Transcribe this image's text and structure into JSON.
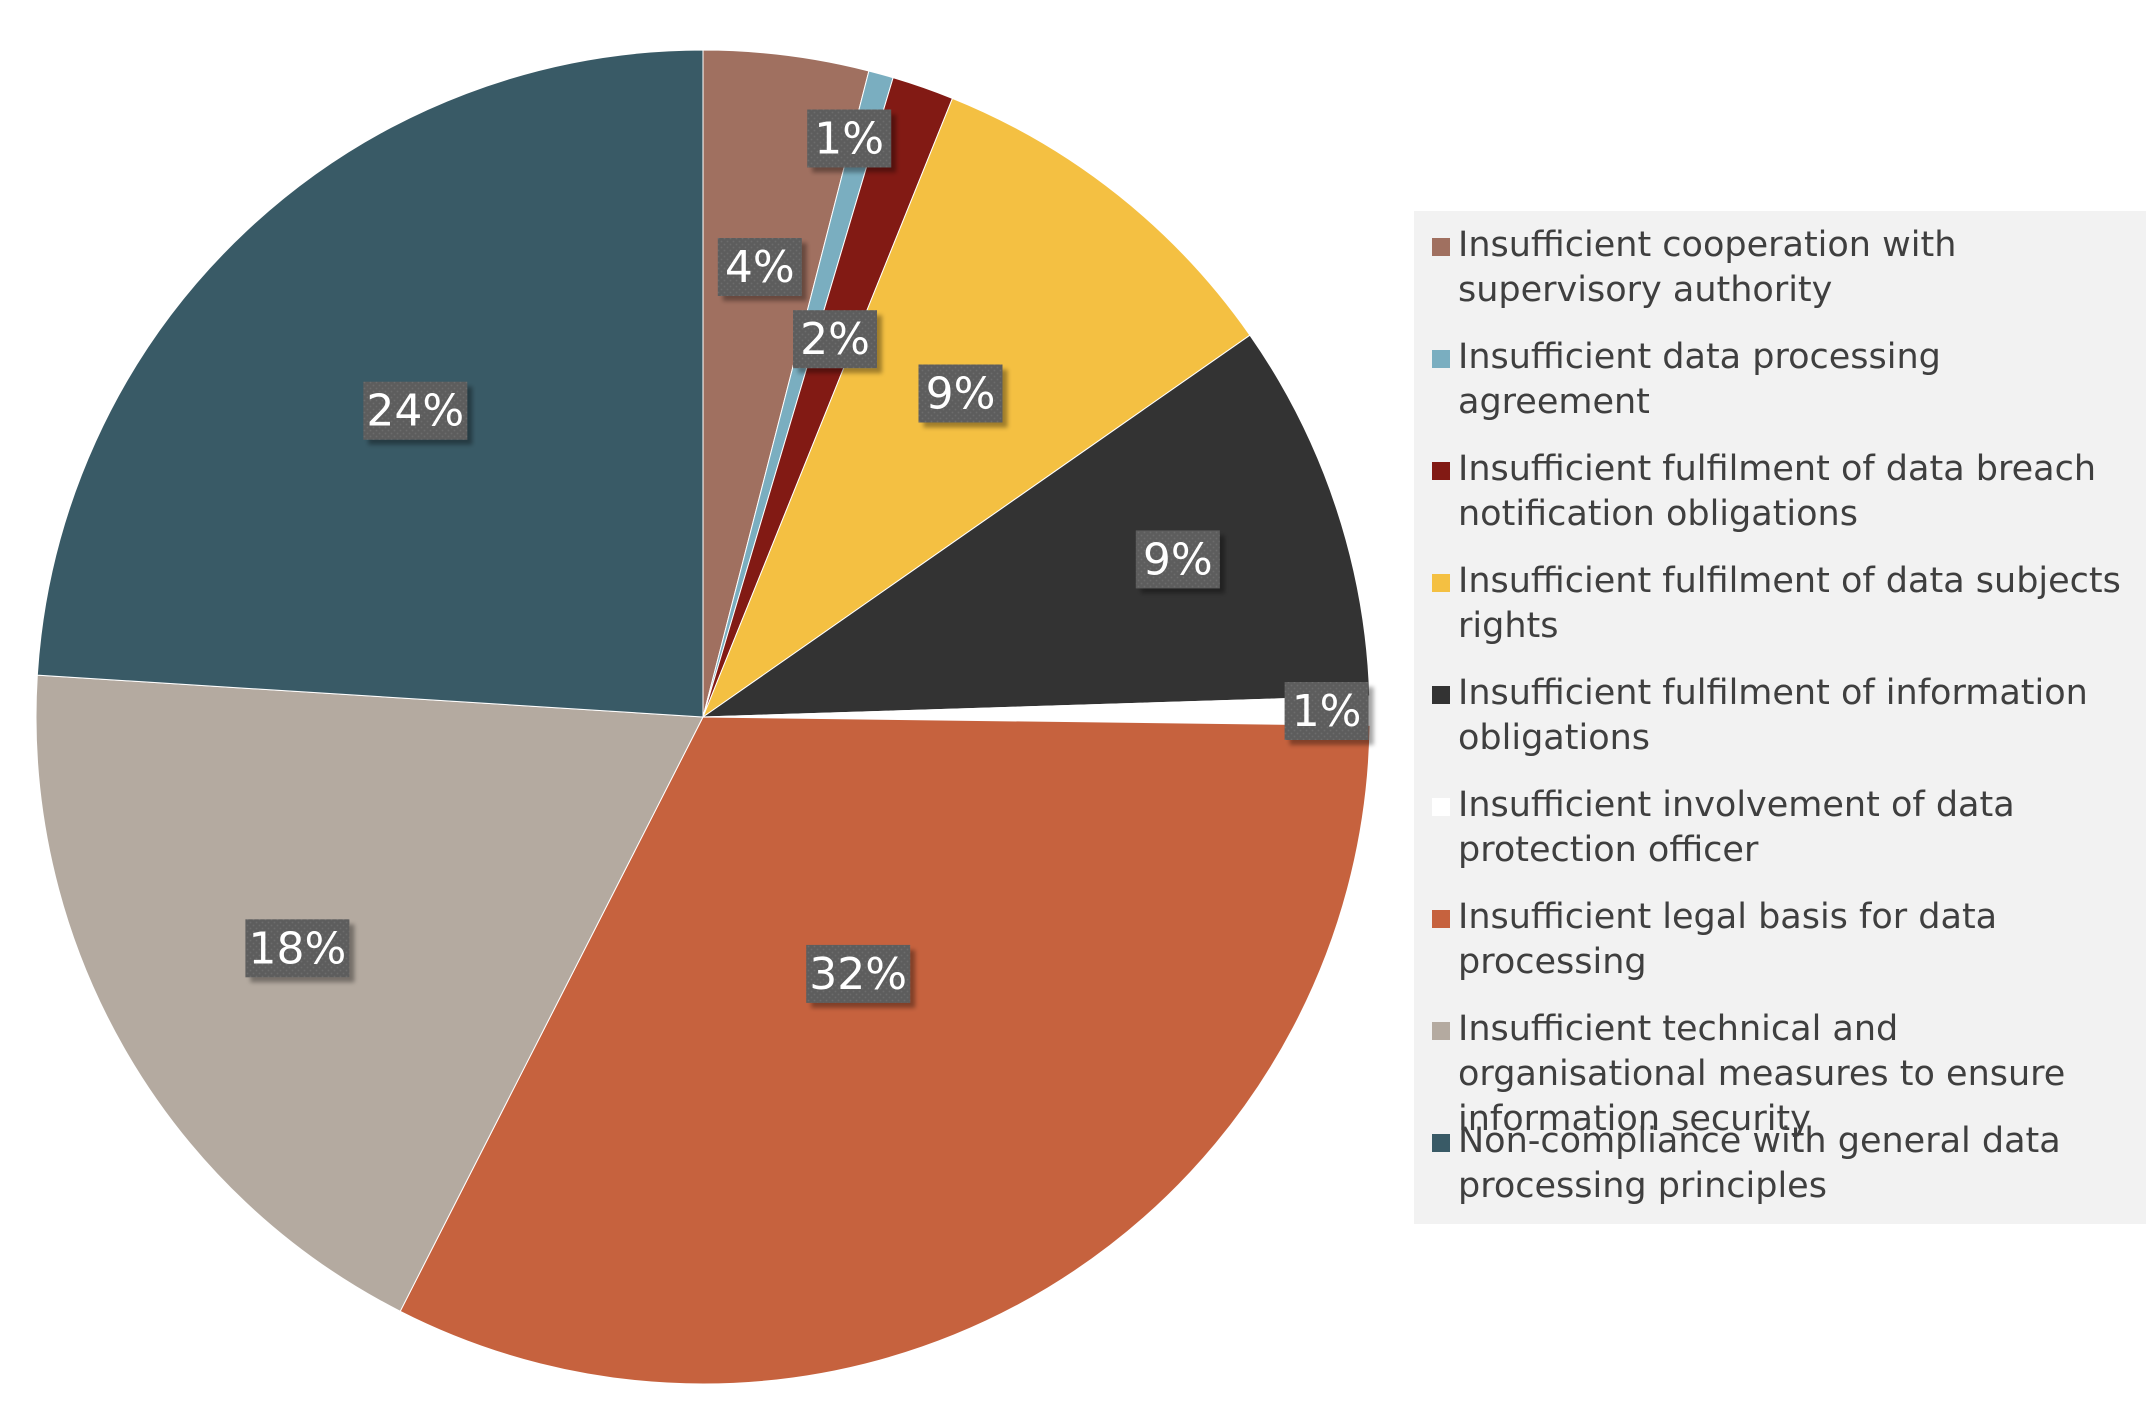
{
  "chart_data": {
    "type": "pie",
    "title": "",
    "start_angle_deg": 0,
    "direction": "clockwise",
    "legend_position": "right",
    "slices": [
      {
        "label": "Insufficient cooperation with supervisory authority",
        "value": 4,
        "display": "4%",
        "color": "#a07060"
      },
      {
        "label": "Insufficient data processing agreement",
        "value": 0.6,
        "display": "1%",
        "color": "#7aaec0"
      },
      {
        "label": "Insufficient fulfilment of data breach notification obligations",
        "value": 1.5,
        "display": "2%",
        "color": "#821a14"
      },
      {
        "label": "Insufficient fulfilment of data subjects rights",
        "value": 9.2,
        "display": "9%",
        "color": "#f4c042"
      },
      {
        "label": "Insufficient fulfilment of information obligations",
        "value": 9.2,
        "display": "9%",
        "color": "#333333"
      },
      {
        "label": "Insufficient involvement of data protection officer",
        "value": 0.7,
        "display": "1%",
        "color": "#ffffff"
      },
      {
        "label": "Insufficient legal basis for data processing",
        "value": 32.3,
        "display": "32%",
        "color": "#c6623e"
      },
      {
        "label": "Insufficient technical and organisational measures to ensure information security",
        "value": 18.5,
        "display": "18%",
        "color": "#b4aaa0"
      },
      {
        "label": "Non-compliance with general data processing principles",
        "value": 24,
        "display": "24%",
        "color": "#395a66"
      }
    ]
  }
}
